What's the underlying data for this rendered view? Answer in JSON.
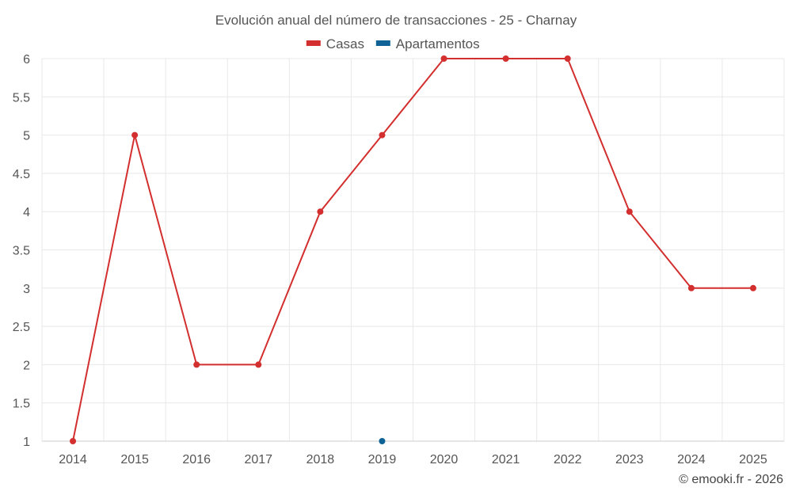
{
  "chart_data": {
    "type": "line",
    "title": "Evolución anual del número de transacciones - 25 - Charnay",
    "categories": [
      "2014",
      "2015",
      "2016",
      "2017",
      "2018",
      "2019",
      "2020",
      "2021",
      "2022",
      "2023",
      "2024",
      "2025"
    ],
    "series": [
      {
        "name": "Casas",
        "color": "#d32f2f",
        "values": [
          1,
          5,
          2,
          2,
          4,
          5,
          6,
          6,
          6,
          4,
          3,
          3
        ]
      },
      {
        "name": "Apartamentos",
        "color": "#0e6295",
        "values": [
          null,
          null,
          null,
          null,
          null,
          1,
          null,
          null,
          null,
          null,
          null,
          null
        ]
      }
    ],
    "ylim": [
      1,
      6
    ],
    "yticks": [
      "1",
      "1.5",
      "2",
      "2.5",
      "3",
      "3.5",
      "4",
      "4.5",
      "5",
      "5.5",
      "6"
    ],
    "legend_position": "top-center",
    "grid": true,
    "xlabel": "",
    "ylabel": ""
  },
  "credit": "© emooki.fr - 2026"
}
